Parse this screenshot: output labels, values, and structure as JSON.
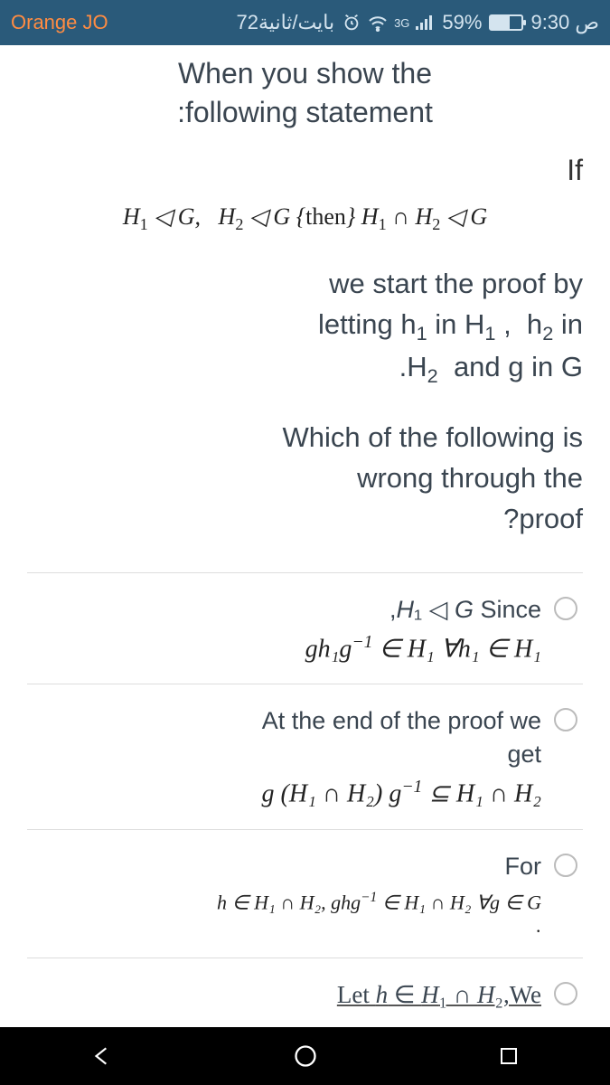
{
  "statusbar": {
    "carrier": "Orange JO",
    "data_rate": "72بايت/ثانية",
    "signal_label": "3G",
    "battery_pct": "59%",
    "time": "9:30 ص"
  },
  "content": {
    "intro_line1": "When you show the",
    "intro_line2": ":following statement",
    "if_label": "If",
    "premise_math": "H₁ ◁ G,   H₂ ◁ G {then} H₁ ∩ H₂ ◁ G",
    "body_line1": "we start the proof by",
    "body_line2": "letting h₁ in H₁ ,  h₂ in",
    "body_line3": ".H₂  and g in G",
    "question_line1": "Which of the following is",
    "question_line2": "wrong through the",
    "question_line3": "?proof"
  },
  "options": [
    {
      "label_html": ",<i>H</i>₁ ◁ <i>G</i> Since",
      "math_html": "<i>gh</i>₁<i>g</i><span class='sup'>−1</span> ∈ <i>H</i>₁ ∀<i>h</i>₁ ∈ <i>H</i>₁"
    },
    {
      "label_html": "At the end of the proof we<br>get",
      "math_html": "<i>g</i> (<i>H</i>₁ ∩ <i>H</i>₂) <i>g</i><span class='sup'>−1</span> ⊆ <i>H</i>₁ ∩ <i>H</i>₂"
    },
    {
      "label_html": "For",
      "math_html": "<i>h</i> ∈ <i>H</i>₁ ∩ <i>H</i>₂,  <i>ghg</i><span class='sup'>−1</span> ∈ <i>H</i>₁ ∩ <i>H</i>₂ ∀<i>g</i> ∈ <i>G</i><br>.",
      "math_small": true
    },
    {
      "label_html": "Let <i>h</i>  ∈ <i>H</i>₁ ∩ <i>H</i>₂,We",
      "math_html": "",
      "cut": true
    }
  ]
}
